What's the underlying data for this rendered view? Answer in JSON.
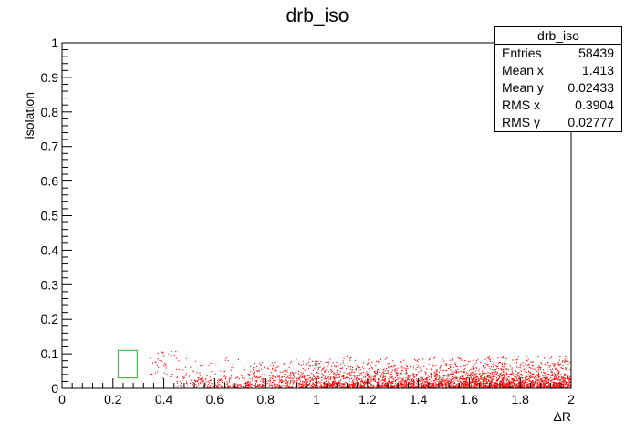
{
  "title": "drb_iso",
  "stats_box": {
    "title": "drb_iso",
    "rows": [
      {
        "label": "Entries",
        "value": "58439"
      },
      {
        "label": "Mean x",
        "value": "1.413"
      },
      {
        "label": "Mean y",
        "value": "0.02433"
      },
      {
        "label": "RMS x",
        "value": "0.3904"
      },
      {
        "label": "RMS y",
        "value": "0.02777"
      }
    ]
  },
  "colors": {
    "points": "#ff0000",
    "highlight_box": "#33aa33",
    "axes": "#000000"
  },
  "chart_data": {
    "type": "scatter",
    "title": "drb_iso",
    "xlabel": "ΔR",
    "ylabel": "isolation",
    "xlim": [
      0,
      2
    ],
    "ylim": [
      0,
      1
    ],
    "x_ticks": [
      "0",
      "0.2",
      "0.4",
      "0.6",
      "0.8",
      "1",
      "1.2",
      "1.4",
      "1.6",
      "1.8",
      "2"
    ],
    "y_ticks": [
      "0",
      "0.1",
      "0.2",
      "0.3",
      "0.4",
      "0.5",
      "0.6",
      "0.7",
      "0.8",
      "0.9",
      "1"
    ],
    "grid": false,
    "point_color": "#ff0000",
    "density": {
      "x_range": [
        0.45,
        2.0
      ],
      "y_range": [
        0,
        0.12
      ],
      "entries": 58439,
      "mean_x": 1.413,
      "mean_y": 0.02433,
      "rms_x": 0.3904,
      "rms_y": 0.02777
    },
    "box_region": {
      "x": [
        0.22,
        0.295
      ],
      "y": [
        0.03,
        0.11
      ],
      "color": "#33aa33"
    }
  }
}
